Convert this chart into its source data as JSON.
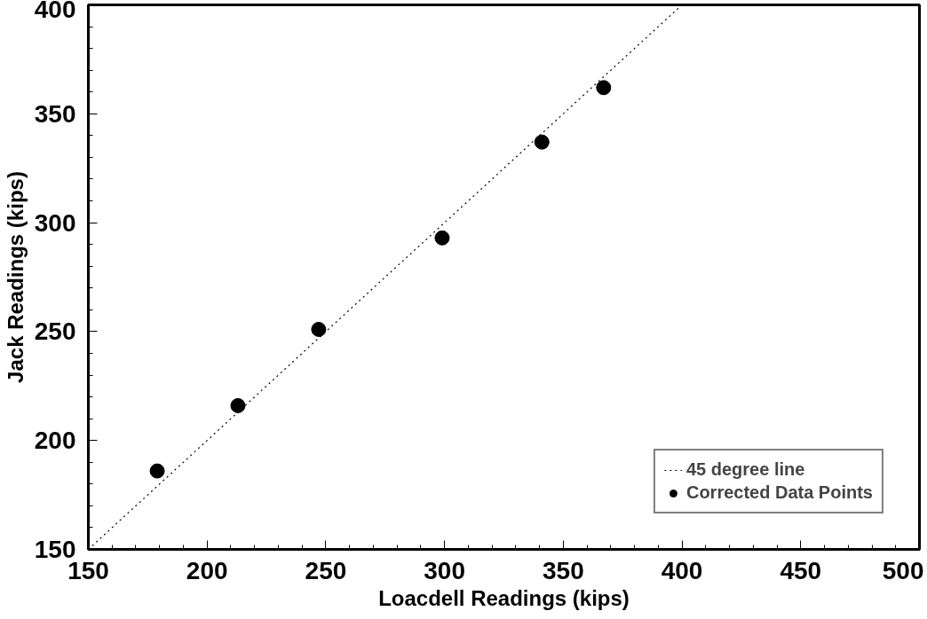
{
  "chart_data": {
    "type": "scatter",
    "xlabel": "Loacdell Readings (kips)",
    "ylabel": "Jack Readings (kips)",
    "xlim": [
      150,
      500
    ],
    "ylim": [
      150,
      400
    ],
    "xticks": [
      150,
      200,
      250,
      300,
      350,
      400,
      450,
      500
    ],
    "yticks": [
      150,
      200,
      250,
      300,
      350,
      400
    ],
    "grid": false,
    "legend": "bottom right",
    "series": [
      {
        "name": "45 degree line",
        "type": "line",
        "line_style": "dotted",
        "color": "#000000",
        "x": [
          150,
          400
        ],
        "values": [
          150,
          400
        ]
      },
      {
        "name": "Corrected Data Points",
        "marker": "circle",
        "color": "#000000",
        "x": [
          179,
          213,
          247,
          299,
          341,
          367
        ],
        "values": [
          186,
          216,
          251,
          293,
          337,
          362
        ]
      }
    ]
  }
}
